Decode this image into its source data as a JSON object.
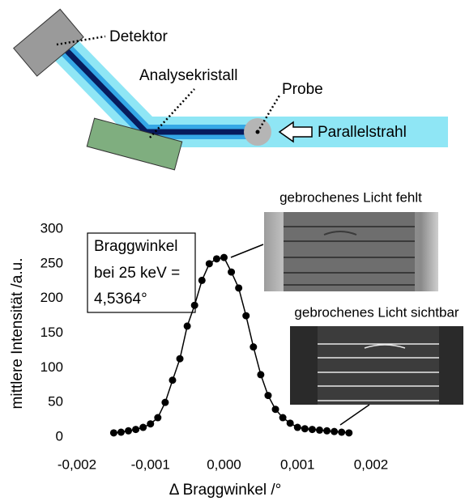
{
  "diagram": {
    "detector": "Detektor",
    "crystal": "Analysekristall",
    "sample": "Probe",
    "beam": "Parallelstrahl"
  },
  "chart_data": {
    "type": "scatter",
    "x_label": "Δ Braggwinkel /°",
    "y_label": "mittlere Intensität /a.u.",
    "annotation": [
      "Braggwinkel",
      "bei 25 keV =",
      "4,5364°"
    ],
    "image_labels": [
      "gebrochenes Licht fehlt",
      "gebrochenes Licht sichtbar"
    ],
    "color": "#000000",
    "x": [
      -0.0015,
      -0.0014,
      -0.0013,
      -0.0012,
      -0.0011,
      -0.001,
      -0.0009,
      -0.0008,
      -0.0007,
      -0.0006,
      -0.0005,
      -0.0004,
      -0.0003,
      -0.0002,
      -0.0001,
      0,
      0.0001,
      0.0002,
      0.0003,
      0.0004,
      0.0005,
      0.0006,
      0.0007,
      0.0008,
      0.0009,
      0.001,
      0.0011,
      0.0012,
      0.0013,
      0.0014,
      0.0015,
      0.0016,
      0.0017
    ],
    "values": [
      6,
      7,
      9,
      11,
      14,
      19,
      28,
      50,
      82,
      113,
      160,
      190,
      226,
      250,
      257,
      259,
      238,
      215,
      175,
      130,
      90,
      60,
      40,
      28,
      20,
      14,
      12,
      11,
      10,
      9,
      8,
      7,
      6
    ],
    "xlim": [
      -0.002,
      0.002
    ],
    "xticks": [
      {
        "value": -0.002,
        "label": "-0,002"
      },
      {
        "value": -0.001,
        "label": "-0,001"
      },
      {
        "value": 0,
        "label": "0,000"
      },
      {
        "value": 0.001,
        "label": "0,001"
      },
      {
        "value": 0.002,
        "label": "0,002"
      }
    ],
    "ylim": [
      0,
      300
    ],
    "yticks": [
      0,
      50,
      100,
      150,
      200,
      250,
      300
    ],
    "grid": false
  }
}
